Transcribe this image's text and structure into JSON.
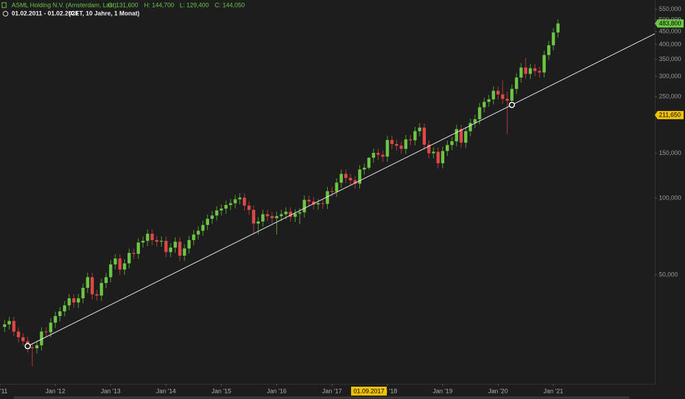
{
  "header": {
    "title": "ASML Holding N.V. (Amsterdam, Last)",
    "ohlc": [
      "O: 131,600",
      "H: 144,700",
      "L: 129,400",
      "C: 144,050"
    ],
    "period": "01.02.2011 - 01.02.2021",
    "settings": "(CET, 10 Jahre, 1 Monat)"
  },
  "chart_data": {
    "type": "candlestick",
    "log_scale": true,
    "up_color": "#6cc644",
    "down_color": "#e04848",
    "x": [
      "2011-02",
      "2011-03",
      "2011-04",
      "2011-05",
      "2011-06",
      "2011-07",
      "2011-08",
      "2011-09",
      "2011-10",
      "2011-11",
      "2011-12",
      "2012-01",
      "2012-02",
      "2012-03",
      "2012-04",
      "2012-05",
      "2012-06",
      "2012-07",
      "2012-08",
      "2012-09",
      "2012-10",
      "2012-11",
      "2012-12",
      "2013-01",
      "2013-02",
      "2013-03",
      "2013-04",
      "2013-05",
      "2013-06",
      "2013-07",
      "2013-08",
      "2013-09",
      "2013-10",
      "2013-11",
      "2013-12",
      "2014-01",
      "2014-02",
      "2014-03",
      "2014-04",
      "2014-05",
      "2014-06",
      "2014-07",
      "2014-08",
      "2014-09",
      "2014-10",
      "2014-11",
      "2014-12",
      "2015-01",
      "2015-02",
      "2015-03",
      "2015-04",
      "2015-05",
      "2015-06",
      "2015-07",
      "2015-08",
      "2015-09",
      "2015-10",
      "2015-11",
      "2015-12",
      "2016-01",
      "2016-02",
      "2016-03",
      "2016-04",
      "2016-05",
      "2016-06",
      "2016-07",
      "2016-08",
      "2016-09",
      "2016-10",
      "2016-11",
      "2016-12",
      "2017-01",
      "2017-02",
      "2017-03",
      "2017-04",
      "2017-05",
      "2017-06",
      "2017-07",
      "2017-08",
      "2017-09",
      "2017-10",
      "2017-11",
      "2017-12",
      "2018-01",
      "2018-02",
      "2018-03",
      "2018-04",
      "2018-05",
      "2018-06",
      "2018-07",
      "2018-08",
      "2018-09",
      "2018-10",
      "2018-11",
      "2018-12",
      "2019-01",
      "2019-02",
      "2019-03",
      "2019-04",
      "2019-05",
      "2019-06",
      "2019-07",
      "2019-08",
      "2019-09",
      "2019-10",
      "2019-11",
      "2019-12",
      "2020-01",
      "2020-02",
      "2020-03",
      "2020-04",
      "2020-05",
      "2020-06",
      "2020-07",
      "2020-08",
      "2020-09",
      "2020-10",
      "2020-11",
      "2020-12",
      "2021-01",
      "2021-02"
    ],
    "open": [
      31300,
      32000,
      33000,
      30000,
      28500,
      27500,
      26000,
      25800,
      26500,
      30000,
      29800,
      32500,
      34500,
      36000,
      38000,
      40500,
      39000,
      40500,
      44500,
      49000,
      42000,
      41500,
      46500,
      49000,
      55000,
      58000,
      52500,
      55500,
      61000,
      60500,
      67000,
      68000,
      72500,
      68500,
      67500,
      68000,
      61500,
      64000,
      67500,
      59500,
      63500,
      68500,
      72000,
      74500,
      78500,
      83000,
      85500,
      89500,
      91000,
      94000,
      95500,
      99000,
      100500,
      93500,
      90000,
      79500,
      81000,
      86500,
      85000,
      83500,
      85000,
      86500,
      88500,
      84500,
      87000,
      88000,
      98500,
      97000,
      94500,
      95500,
      95000,
      106500,
      106000,
      115000,
      124500,
      120000,
      117500,
      114000,
      129500,
      131600,
      144050,
      150500,
      148000,
      145500,
      169000,
      163000,
      160500,
      156000,
      170000,
      168500,
      183000,
      189000,
      162000,
      150000,
      152000,
      137000,
      153000,
      161500,
      167000,
      186500,
      165000,
      183000,
      197000,
      204000,
      227000,
      238500,
      244000,
      263500,
      255000,
      245000,
      241000,
      268000,
      297000,
      325000,
      307000,
      323000,
      315000,
      311000,
      364000,
      397500,
      446000
    ],
    "high": [
      33300,
      34300,
      34300,
      31200,
      29600,
      28600,
      27000,
      27600,
      31200,
      31200,
      33800,
      35900,
      37400,
      39500,
      42100,
      42100,
      42100,
      46300,
      51000,
      51000,
      43700,
      48400,
      51000,
      57200,
      60300,
      60300,
      57700,
      63400,
      63400,
      69700,
      70700,
      75400,
      75400,
      71200,
      70700,
      70700,
      66600,
      70200,
      70200,
      66000,
      71200,
      74900,
      77500,
      81600,
      86300,
      88900,
      93100,
      94600,
      97800,
      99300,
      103000,
      104500,
      104500,
      97200,
      93600,
      84200,
      90000,
      90000,
      88400,
      88400,
      90000,
      92000,
      92000,
      90500,
      91500,
      102400,
      102400,
      100900,
      99300,
      99300,
      110800,
      110800,
      119600,
      129500,
      129500,
      124800,
      122200,
      134700,
      136900,
      144700,
      156500,
      156500,
      153900,
      175800,
      175800,
      169500,
      166900,
      176800,
      176800,
      190300,
      196600,
      196600,
      168500,
      158100,
      158100,
      159100,
      168000,
      173700,
      194000,
      194000,
      190300,
      204900,
      212200,
      236100,
      248000,
      253800,
      274000,
      274000,
      290000,
      262000,
      278700,
      308900,
      338000,
      355000,
      335900,
      335900,
      327600,
      378600,
      413400,
      463800,
      502000
    ],
    "low": [
      29900,
      30600,
      28700,
      27200,
      26300,
      24800,
      21900,
      24600,
      25300,
      28500,
      28500,
      31000,
      32900,
      34400,
      36300,
      37200,
      37200,
      38700,
      42500,
      40100,
      39600,
      39600,
      44400,
      46800,
      52500,
      50100,
      50100,
      53000,
      57800,
      57800,
      64000,
      64900,
      65400,
      64500,
      64500,
      58700,
      58700,
      61100,
      56800,
      56800,
      60600,
      65400,
      68800,
      71100,
      75000,
      79300,
      81700,
      85500,
      86900,
      89800,
      91200,
      94500,
      89300,
      86000,
      72000,
      72000,
      77400,
      81200,
      79700,
      72000,
      81200,
      82600,
      80700,
      80700,
      79000,
      84000,
      92600,
      90200,
      90200,
      90700,
      90700,
      101200,
      101200,
      109800,
      114600,
      112200,
      108900,
      108900,
      123700,
      129400,
      137600,
      141300,
      139000,
      139000,
      155700,
      153300,
      149000,
      149000,
      160900,
      160900,
      174800,
      154700,
      143300,
      143300,
      130800,
      130800,
      146100,
      154200,
      159500,
      157600,
      157600,
      174800,
      188100,
      194800,
      216800,
      227800,
      233000,
      243500,
      234000,
      178500,
      230200,
      256000,
      283600,
      293200,
      293200,
      300800,
      297000,
      297000,
      347600,
      379600,
      426000
    ],
    "close": [
      32000,
      33000,
      30000,
      28500,
      27500,
      26000,
      25800,
      26500,
      30000,
      29800,
      32500,
      34500,
      36000,
      38000,
      40500,
      39000,
      40500,
      44500,
      49000,
      42000,
      41500,
      46500,
      49000,
      55000,
      58000,
      52500,
      55500,
      61000,
      60500,
      67000,
      68000,
      72500,
      68500,
      67500,
      68000,
      61500,
      64000,
      67500,
      59500,
      63500,
      68500,
      72000,
      74500,
      78500,
      83000,
      85500,
      89500,
      91000,
      94000,
      95500,
      99000,
      100500,
      93500,
      90000,
      79500,
      81000,
      86500,
      85000,
      83500,
      85000,
      86500,
      88500,
      84500,
      87000,
      88000,
      98500,
      97000,
      94500,
      95500,
      95000,
      106500,
      106000,
      115000,
      124500,
      120000,
      117500,
      114000,
      129500,
      131600,
      144050,
      150500,
      148000,
      145500,
      169000,
      163000,
      160500,
      156000,
      170000,
      168500,
      183000,
      189000,
      162000,
      150000,
      152000,
      137000,
      153000,
      161500,
      167000,
      186500,
      165000,
      183000,
      197000,
      204000,
      227000,
      238500,
      244000,
      263500,
      255000,
      245000,
      241000,
      268000,
      297000,
      325000,
      307000,
      323000,
      315000,
      311000,
      364000,
      397500,
      446000,
      483800
    ],
    "xlim": [
      "2011-01",
      "2022-11"
    ],
    "xticks": [
      {
        "value": "2011-01",
        "label": "'11"
      },
      {
        "value": "2012-01",
        "label": "Jan '12"
      },
      {
        "value": "2013-01",
        "label": "Jan '13"
      },
      {
        "value": "2014-01",
        "label": "Jan '14"
      },
      {
        "value": "2015-01",
        "label": "Jan '15"
      },
      {
        "value": "2016-01",
        "label": "Jan '16"
      },
      {
        "value": "2017-01",
        "label": "Jan '17"
      },
      {
        "value": "2018-01",
        "label": "Jan '18"
      },
      {
        "value": "2019-01",
        "label": "Jan '19"
      },
      {
        "value": "2020-01",
        "label": "Jan '20"
      },
      {
        "value": "2021-01",
        "label": "Jan '21"
      }
    ],
    "ylim": [
      18700,
      598000
    ],
    "yticks": [
      {
        "value": 50000,
        "label": "50,000"
      },
      {
        "value": 100000,
        "label": "100,000"
      },
      {
        "value": 150000,
        "label": "150,000"
      },
      {
        "value": 250000,
        "label": "250,000"
      },
      {
        "value": 300000,
        "label": "300,000"
      },
      {
        "value": 350000,
        "label": "350,000"
      },
      {
        "value": 400000,
        "label": "400,000"
      },
      {
        "value": 450000,
        "label": "450,000"
      },
      {
        "value": 500000,
        "label": "500,000"
      },
      {
        "value": 550000,
        "label": "550,000"
      }
    ],
    "trendline": {
      "x": [
        "2011-07",
        "2020-04"
      ],
      "y": [
        26300,
        232000
      ],
      "color": "#e8e8e8"
    },
    "badges": [
      {
        "value": 483800,
        "label": "483,800",
        "color": "#6cc644"
      },
      {
        "value": 211650,
        "label": "211,650",
        "color": "#f2c200"
      }
    ],
    "crosshair": {
      "x": "2017-09",
      "label": "01.09.2017",
      "color": "#f2c200"
    }
  }
}
